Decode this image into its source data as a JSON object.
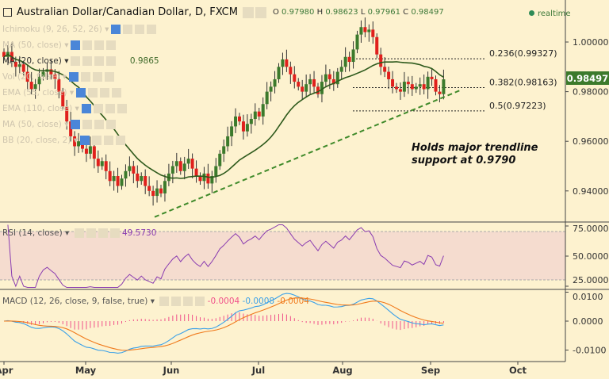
{
  "header": {
    "title": "Australian Dollar/Canadian Dollar, D, FXCM",
    "open_label": "O",
    "open": "0.97980",
    "high_label": "H",
    "high": "0.98623",
    "low_label": "L",
    "low": "0.97961",
    "close_label": "C",
    "close": "0.98497",
    "status": "realtime"
  },
  "indicators": [
    {
      "label": "Ichimoku (9, 26, 52, 26)"
    },
    {
      "label": "MA (50, close)"
    },
    {
      "label": "MA (20, close)",
      "value": "0.9865"
    },
    {
      "label": "Vol (20, false)"
    },
    {
      "label": "EMA (55, close)"
    },
    {
      "label": "EMA (110, close)"
    },
    {
      "label": "MA (50, close)"
    },
    {
      "label": "BB (20, close, 2)"
    }
  ],
  "annotation": "Holds major trendline support at 0.9790",
  "colors": {
    "up": "#3c7a2c",
    "down": "#e0201c",
    "ma": "#2e5a1c",
    "trend": "#3f8a2a",
    "rsi": "#8a3cb0",
    "macd": "#3aa0e8",
    "signal": "#f07a1c",
    "hist": "#f0508a",
    "price_tag": "#3c7a2c"
  },
  "chart_data": [
    {
      "type": "candlestick",
      "pane": "price",
      "x_ticks": [
        "Apr",
        "May",
        "Jun",
        "Jul",
        "Aug",
        "Sep",
        "Oct"
      ],
      "y_ticks": [
        "1.00000",
        "0.98000",
        "0.96000",
        "0.94000"
      ],
      "ylim": [
        0.93,
        1.017
      ],
      "last_price": "0.98497",
      "closes": [
        0.994,
        0.996,
        0.992,
        0.99,
        0.991,
        0.988,
        0.984,
        0.981,
        0.983,
        0.986,
        0.988,
        0.989,
        0.987,
        0.985,
        0.98,
        0.974,
        0.968,
        0.962,
        0.958,
        0.96,
        0.957,
        0.955,
        0.958,
        0.953,
        0.95,
        0.952,
        0.948,
        0.944,
        0.946,
        0.942,
        0.945,
        0.948,
        0.95,
        0.947,
        0.944,
        0.946,
        0.942,
        0.94,
        0.938,
        0.941,
        0.939,
        0.944,
        0.947,
        0.95,
        0.952,
        0.948,
        0.951,
        0.953,
        0.949,
        0.946,
        0.944,
        0.947,
        0.943,
        0.946,
        0.95,
        0.955,
        0.958,
        0.962,
        0.966,
        0.97,
        0.968,
        0.964,
        0.967,
        0.969,
        0.972,
        0.97,
        0.975,
        0.98,
        0.982,
        0.985,
        0.99,
        0.993,
        0.99,
        0.987,
        0.984,
        0.982,
        0.98,
        0.983,
        0.985,
        0.982,
        0.979,
        0.984,
        0.987,
        0.985,
        0.983,
        0.988,
        0.99,
        0.994,
        0.992,
        0.997,
        1.003,
        1.006,
        1.004,
        1.005,
        1.002,
        0.995,
        0.99,
        0.988,
        0.985,
        0.982,
        0.981,
        0.98,
        0.984,
        0.983,
        0.981,
        0.982,
        0.983,
        0.981,
        0.986,
        0.985,
        0.98,
        0.979,
        0.98497
      ],
      "fib_levels": [
        {
          "label": "0.236(0.99327)",
          "value": 0.99327
        },
        {
          "label": "0.382(0.98163)",
          "value": 0.98163
        },
        {
          "label": "0.5(0.97223)",
          "value": 0.97223
        }
      ],
      "trendline": {
        "from": 0.9295,
        "to": 0.9809
      }
    },
    {
      "type": "line",
      "pane": "rsi",
      "title": "RSI (14, close)",
      "value": "49.5730",
      "y_ticks": [
        "75.0000",
        "50.0000",
        "25.0000"
      ],
      "ylim": [
        25,
        75
      ],
      "band": [
        30,
        70
      ]
    },
    {
      "type": "line",
      "pane": "macd",
      "title": "MACD (12, 26, close, 9, false, true)",
      "values": [
        "-0.0004",
        "-0.0008",
        "-0.0004"
      ],
      "y_ticks": [
        "0.0100",
        "0.0000",
        "-0.0100"
      ],
      "ylim": [
        -0.01,
        0.01
      ]
    }
  ]
}
